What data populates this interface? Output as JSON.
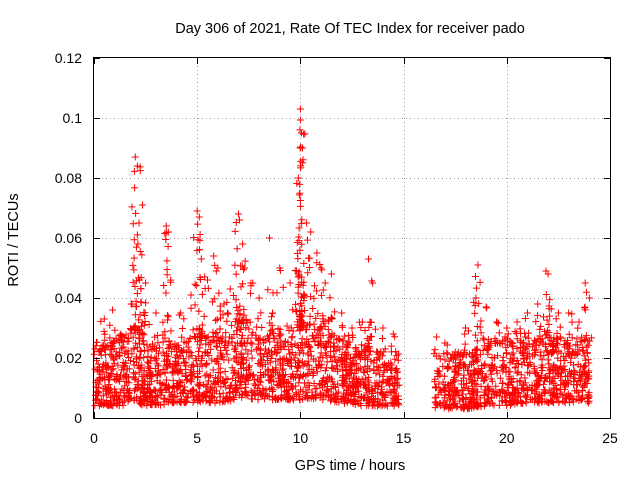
{
  "chart_data": {
    "type": "scatter",
    "title": "Day 306 of 2021, Rate Of TEC Index for receiver pado",
    "xlabel": "GPS time / hours",
    "ylabel": "ROTI / TECUs",
    "xlim": [
      0,
      25
    ],
    "ylim": [
      0,
      0.12
    ],
    "xticks": [
      0,
      5,
      10,
      15,
      20,
      25
    ],
    "xtick_labels": [
      "0",
      "5",
      "10",
      "15",
      "20",
      "25"
    ],
    "yticks": [
      0,
      0.02,
      0.04,
      0.06,
      0.08,
      0.1,
      0.12
    ],
    "ytick_labels": [
      "0",
      "0.02",
      "0.04",
      "0.06",
      "0.08",
      "0.1",
      "0.12"
    ],
    "grid": true,
    "marker": "+",
    "marker_color": "#ff0000",
    "data_gap_hours": [
      14.8,
      16.5
    ],
    "series": [
      {
        "name": "ROTI",
        "x": [
          0.2,
          0.5,
          0.9,
          1.3,
          1.8,
          2.0,
          2.1,
          2.2,
          2.35,
          2.5,
          3.0,
          3.5,
          3.6,
          4.2,
          4.7,
          5.0,
          5.1,
          5.2,
          5.5,
          5.8,
          6.0,
          6.3,
          6.6,
          7.0,
          7.05,
          7.2,
          7.3,
          7.6,
          8.0,
          8.5,
          9.0,
          9.5,
          9.9,
          10.0,
          10.05,
          10.1,
          10.3,
          10.5,
          10.8,
          11.0,
          11.2,
          11.5,
          12.0,
          12.5,
          13.0,
          13.3,
          13.5,
          14.0,
          14.5,
          16.6,
          17.0,
          17.5,
          18.0,
          18.5,
          18.6,
          19.0,
          19.5,
          20.0,
          20.5,
          21.0,
          21.5,
          21.9,
          22.0,
          22.5,
          23.0,
          23.5,
          23.8,
          24.0
        ],
        "y": [
          0.018,
          0.033,
          0.036,
          0.028,
          0.038,
          0.087,
          0.084,
          0.046,
          0.071,
          0.045,
          0.035,
          0.064,
          0.062,
          0.035,
          0.041,
          0.069,
          0.067,
          0.053,
          0.046,
          0.054,
          0.05,
          0.038,
          0.043,
          0.068,
          0.066,
          0.058,
          0.05,
          0.045,
          0.04,
          0.06,
          0.05,
          0.045,
          0.08,
          0.103,
          0.095,
          0.09,
          0.065,
          0.062,
          0.055,
          0.05,
          0.045,
          0.048,
          0.035,
          0.03,
          0.032,
          0.053,
          0.045,
          0.03,
          0.028,
          0.027,
          0.025,
          0.022,
          0.03,
          0.04,
          0.051,
          0.037,
          0.032,
          0.03,
          0.032,
          0.035,
          0.038,
          0.049,
          0.048,
          0.035,
          0.035,
          0.032,
          0.045,
          0.04
        ]
      }
    ],
    "baseline": {
      "description": "dense ROTI band",
      "x": [
        0,
        1,
        2,
        3,
        4,
        5,
        6,
        7,
        8,
        9,
        10,
        11,
        12,
        13,
        14,
        14.8,
        16.5,
        17,
        18,
        19,
        20,
        21,
        22,
        23,
        24
      ],
      "low": [
        0.004,
        0.004,
        0.004,
        0.004,
        0.005,
        0.005,
        0.005,
        0.006,
        0.006,
        0.006,
        0.006,
        0.006,
        0.005,
        0.004,
        0.004,
        0.004,
        0.003,
        0.003,
        0.003,
        0.004,
        0.004,
        0.005,
        0.005,
        0.005,
        0.005
      ],
      "high": [
        0.025,
        0.026,
        0.03,
        0.024,
        0.025,
        0.027,
        0.027,
        0.032,
        0.03,
        0.028,
        0.03,
        0.032,
        0.026,
        0.024,
        0.022,
        0.022,
        0.02,
        0.02,
        0.022,
        0.026,
        0.026,
        0.027,
        0.028,
        0.026,
        0.025
      ]
    }
  }
}
